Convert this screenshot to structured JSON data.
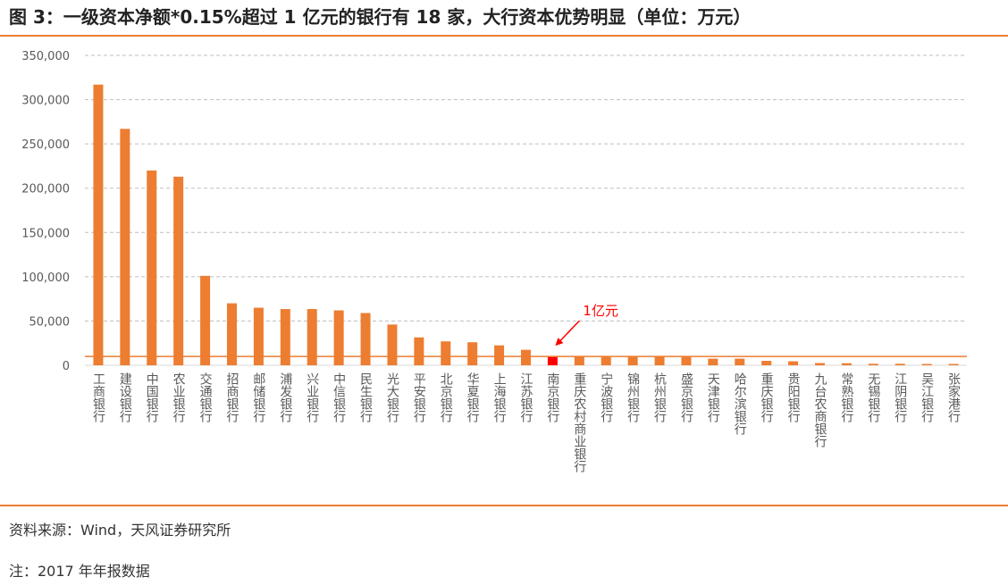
{
  "title": "图 3：一级资本净额*0.15%超过 1 亿元的银行有 18 家，大行资本优势明显（单位：万元）",
  "source": "资料来源：Wind，天风证券研究所",
  "note": "注：2017 年年报数据",
  "colors": {
    "accent": "#ED7D31",
    "highlight": "#FF0000",
    "grid": "#BFBFBF",
    "text": "#595959"
  },
  "chart_data": {
    "type": "bar",
    "title": "",
    "xlabel": "",
    "ylabel": "",
    "ylim": [
      0,
      350000
    ],
    "yticks": [
      0,
      50000,
      100000,
      150000,
      200000,
      250000,
      300000,
      350000
    ],
    "ytick_labels": [
      "0",
      "50,000",
      "100,000",
      "150,000",
      "200,000",
      "250,000",
      "300,000",
      "350,000"
    ],
    "grid": true,
    "categories": [
      "工商银行",
      "建设银行",
      "中国银行",
      "农业银行",
      "交通银行",
      "招商银行",
      "邮储银行",
      "浦发银行",
      "兴业银行",
      "中信银行",
      "民生银行",
      "光大银行",
      "平安银行",
      "北京银行",
      "华夏银行",
      "上海银行",
      "江苏银行",
      "南京银行",
      "重庆农村商业银行",
      "宁波银行",
      "锦州银行",
      "杭州银行",
      "盛京银行",
      "天津银行",
      "哈尔滨银行",
      "重庆银行",
      "贵阳银行",
      "九台农商银行",
      "常熟银行",
      "无锡银行",
      "江阴银行",
      "吴江银行",
      "张家港行"
    ],
    "values": [
      317000,
      267000,
      220000,
      213000,
      101000,
      70000,
      65000,
      63500,
      63500,
      62000,
      59000,
      46000,
      31500,
      27000,
      26000,
      22500,
      17500,
      10200,
      10000,
      10000,
      10000,
      10000,
      10000,
      7500,
      7500,
      5000,
      4500,
      2500,
      2300,
      1700,
      1700,
      1500,
      1500
    ],
    "highlight_index": 17,
    "reference_line": {
      "value": 10000,
      "label": "1亿元"
    }
  }
}
